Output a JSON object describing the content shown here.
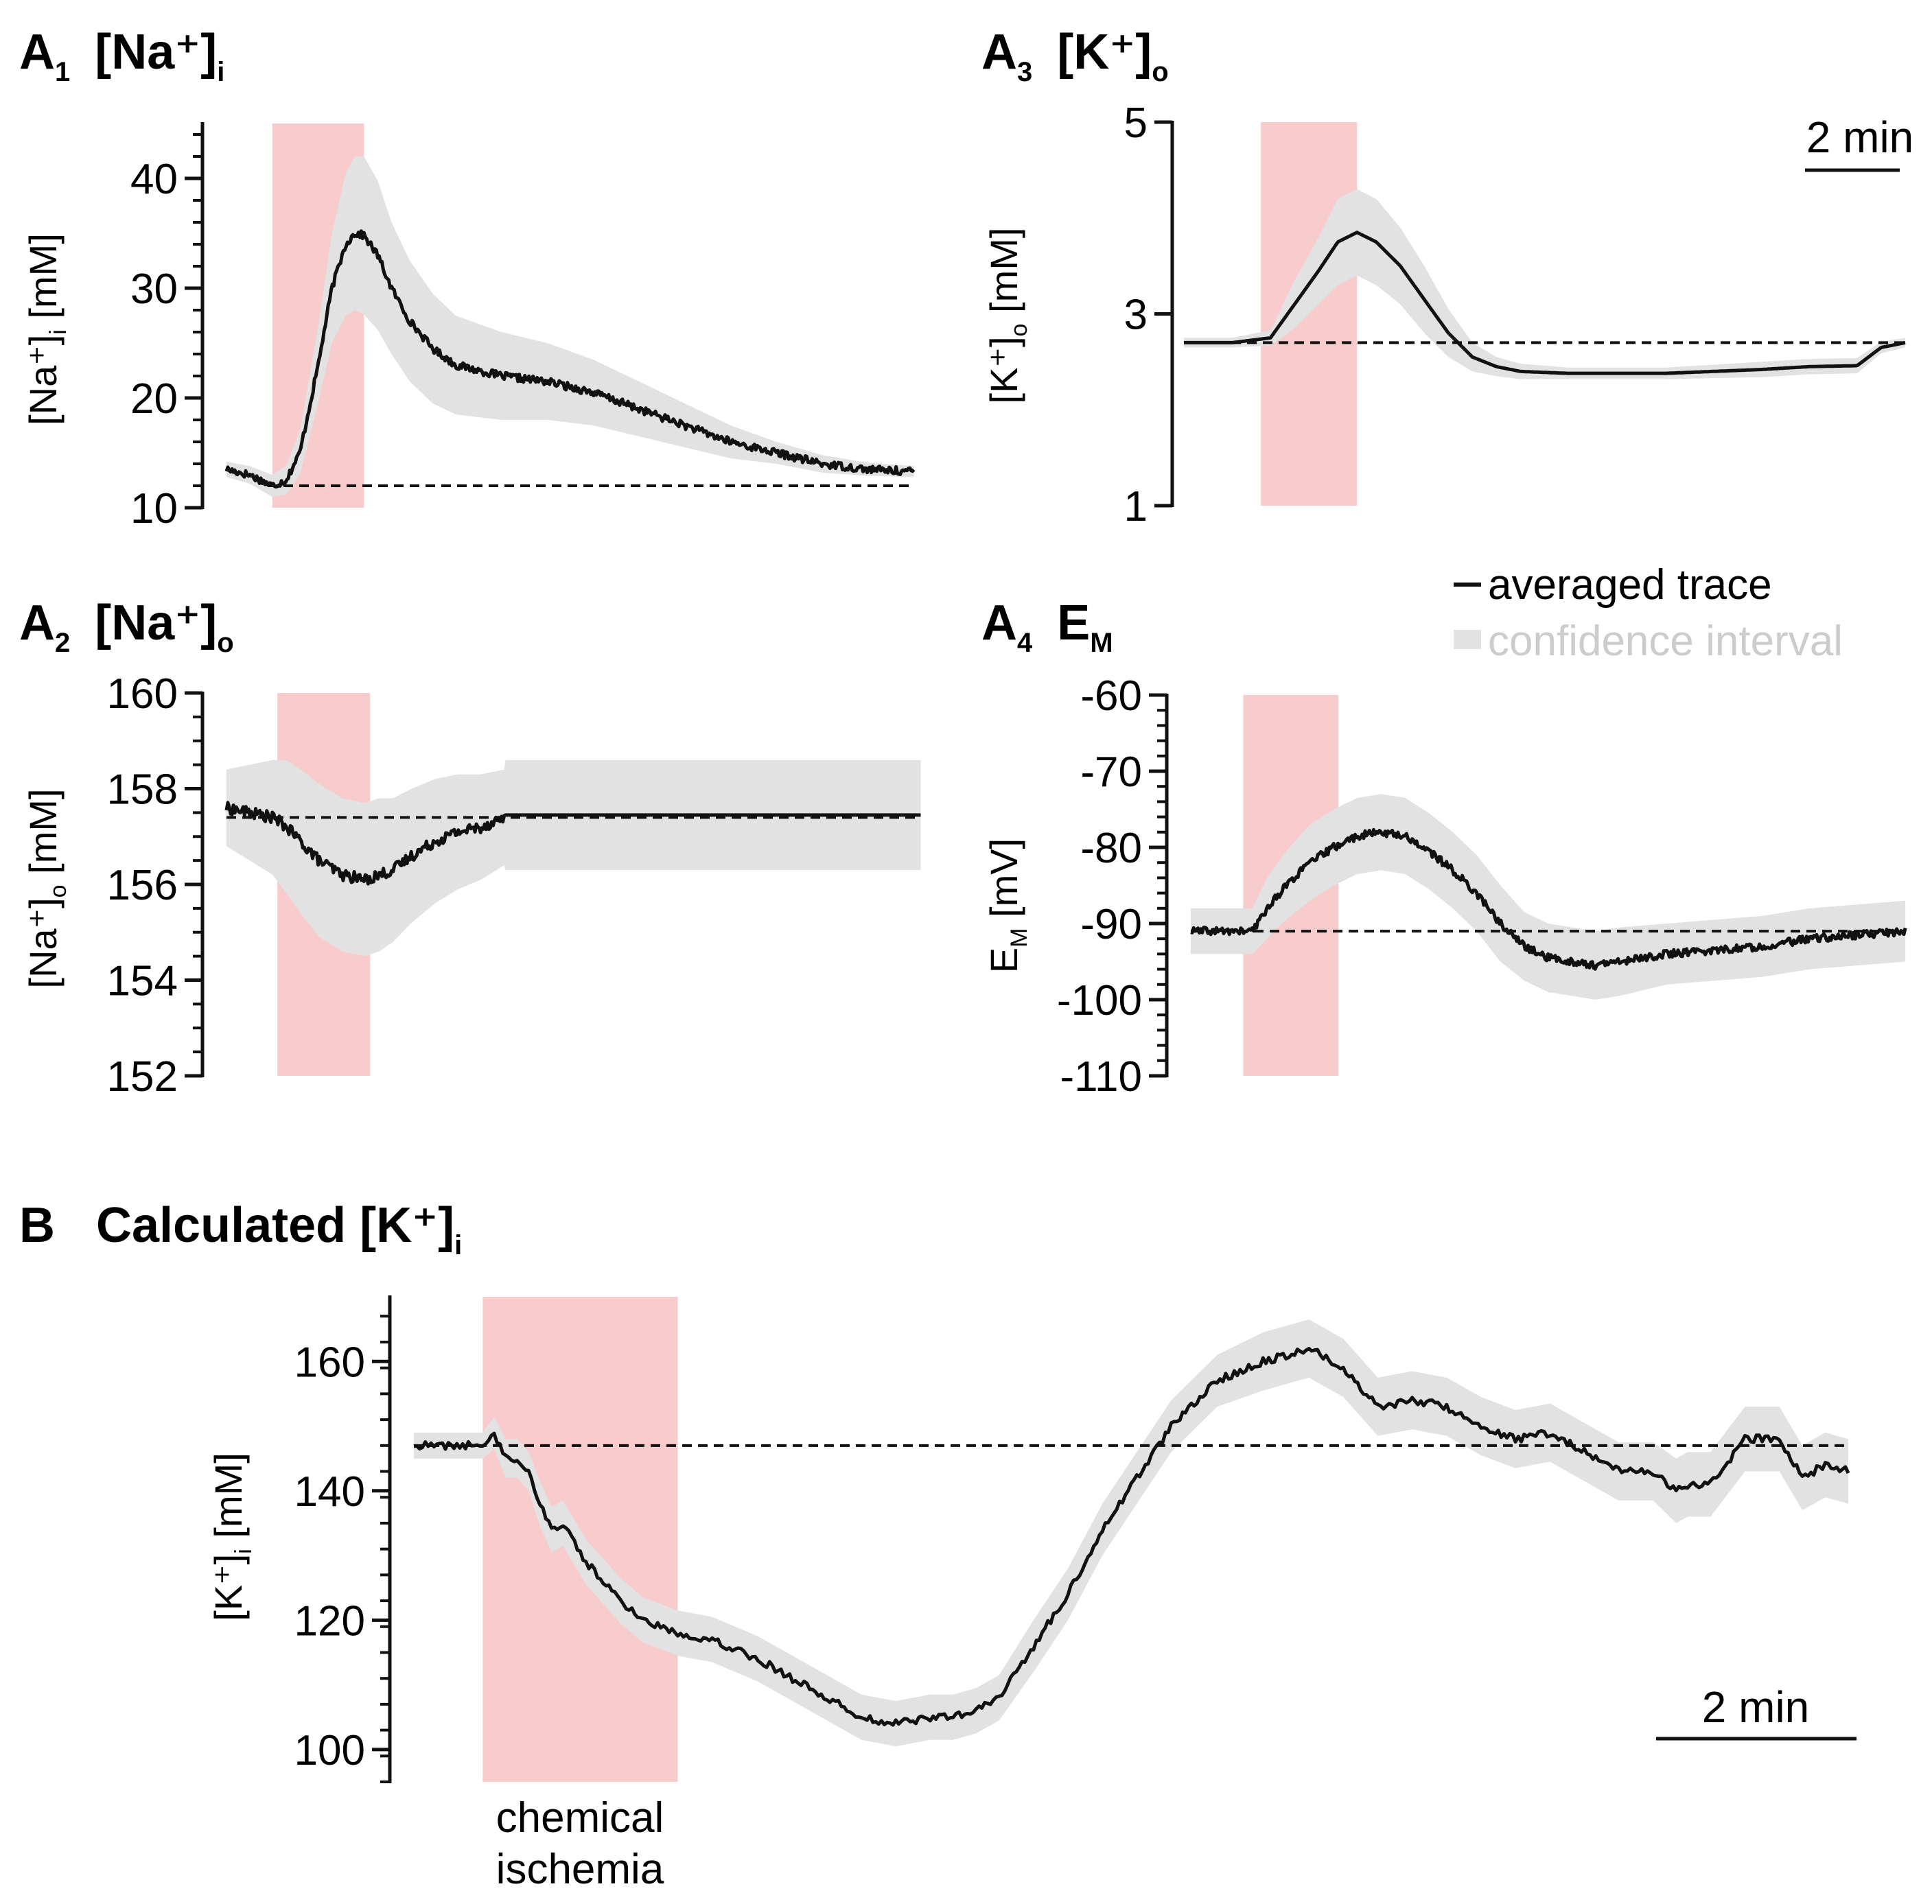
{
  "colors": {
    "trace": "#111111",
    "ci": "#e2e2e2",
    "ischemia": "#f8cbcc",
    "legend_ci_text": "#cccccc"
  },
  "legend": {
    "trace_label": "averaged trace",
    "ci_label": "confidence interval"
  },
  "scalebars": {
    "top": "2 min",
    "bottom": "2 min"
  },
  "annotation": {
    "line1": "chemical",
    "line2": "ischemia"
  },
  "chart_data": [
    {
      "id": "A1",
      "type": "line",
      "panel": "A",
      "panel_index": "1",
      "title": "[Na⁺]",
      "title_sub": "i",
      "ylabel": "[Na⁺]",
      "ylabel_sub": "i",
      "ylabel_unit": " [mM]",
      "xlim": [
        0,
        15.2
      ],
      "ylim": [
        10,
        45
      ],
      "ticks": [
        10,
        20,
        30,
        40
      ],
      "minor_step": 2,
      "ischemia": [
        1.0,
        3.0
      ],
      "baseline": 12,
      "x": [
        0,
        0.5,
        1.0,
        1.3,
        1.6,
        2.0,
        2.3,
        2.6,
        2.8,
        3.0,
        3.3,
        3.6,
        4.0,
        4.5,
        5.0,
        6.0,
        7.0,
        8.0,
        9.0,
        10.0,
        11.0,
        12.0,
        13.0,
        14.0,
        15.0
      ],
      "values": [
        13.5,
        13,
        12,
        12.5,
        15,
        23,
        30,
        34,
        35,
        34.8,
        33,
        30,
        27,
        24.5,
        23,
        22,
        21.5,
        20.5,
        19,
        17.5,
        16,
        15,
        14,
        13.5,
        13.3
      ],
      "ci": [
        0.7,
        0.8,
        1.0,
        1.3,
        2.0,
        3.5,
        5.0,
        6.5,
        7.0,
        7.2,
        6.8,
        6.0,
        5.5,
        5.0,
        4.5,
        4.0,
        3.5,
        3.0,
        2.5,
        2.0,
        1.5,
        1.0,
        0.8,
        0.6,
        0.5
      ],
      "noise": 0.35
    },
    {
      "id": "A2",
      "type": "line",
      "panel": "A",
      "panel_index": "2",
      "title": "[Na⁺]",
      "title_sub": "o",
      "ylabel": "[Na⁺]",
      "ylabel_sub": "o",
      "ylabel_unit": " [mM]",
      "xlim": [
        0,
        15.2
      ],
      "ylim": [
        152,
        160
      ],
      "ticks": [
        152,
        154,
        156,
        158,
        160
      ],
      "minor_step": 0.5,
      "ischemia": [
        1.1,
        3.1
      ],
      "baseline": 157.4,
      "x": [
        0,
        0.5,
        1.0,
        1.3,
        1.6,
        2.0,
        2.5,
        3.0,
        3.3,
        3.6,
        4.0,
        4.5,
        5.0,
        5.5,
        6.0,
        6.01,
        10.0,
        15.0
      ],
      "values": [
        157.6,
        157.5,
        157.4,
        157.2,
        156.9,
        156.5,
        156.2,
        156.1,
        156.2,
        156.3,
        156.6,
        156.9,
        157.1,
        157.2,
        157.4,
        157.45,
        157.45,
        157.45
      ],
      "ci": [
        0.8,
        1.0,
        1.2,
        1.4,
        1.5,
        1.6,
        1.6,
        1.6,
        1.6,
        1.5,
        1.4,
        1.3,
        1.2,
        1.1,
        1.0,
        1.15,
        1.15,
        1.15
      ],
      "noise": 0.12,
      "noise_until": 6.0
    },
    {
      "id": "A3",
      "type": "line",
      "panel": "A",
      "panel_index": "3",
      "title": "[K⁺]",
      "title_sub": "o",
      "ylabel": "[K⁺]",
      "ylabel_sub": "o",
      "ylabel_unit": " [mM]",
      "xlim": [
        0,
        15.2
      ],
      "ylim": [
        1,
        5
      ],
      "ticks": [
        1,
        3,
        5
      ],
      "minor_step": null,
      "ischemia": [
        1.6,
        3.6
      ],
      "baseline": 2.7,
      "x": [
        0,
        1.0,
        1.8,
        2.3,
        2.8,
        3.2,
        3.6,
        4.0,
        4.5,
        5.0,
        5.5,
        6.0,
        6.5,
        7.0,
        8.0,
        9.0,
        10.0,
        11.0,
        12.0,
        13.0,
        14.0,
        14.5,
        15.0
      ],
      "values": [
        2.7,
        2.7,
        2.75,
        3.1,
        3.45,
        3.75,
        3.85,
        3.75,
        3.5,
        3.15,
        2.8,
        2.55,
        2.45,
        2.4,
        2.38,
        2.38,
        2.38,
        2.4,
        2.42,
        2.45,
        2.46,
        2.65,
        2.7
      ],
      "ci": [
        0.05,
        0.05,
        0.08,
        0.25,
        0.35,
        0.45,
        0.45,
        0.45,
        0.4,
        0.35,
        0.25,
        0.15,
        0.1,
        0.08,
        0.06,
        0.06,
        0.06,
        0.07,
        0.08,
        0.08,
        0.08,
        0.06,
        0.05
      ],
      "noise": 0
    },
    {
      "id": "A4",
      "type": "line",
      "panel": "A",
      "panel_index": "4",
      "title": "E",
      "title_sub": "M",
      "ylabel": "E",
      "ylabel_sub": "M",
      "ylabel_unit": " [mV]",
      "xlim": [
        0,
        15.2
      ],
      "ylim": [
        -110,
        -60
      ],
      "ticks": [
        -110,
        -100,
        -90,
        -80,
        -70,
        -60
      ],
      "minor_step": 2,
      "ischemia": [
        1.1,
        3.1
      ],
      "baseline": -91,
      "x": [
        0,
        0.8,
        1.3,
        1.6,
        2.0,
        2.5,
        3.0,
        3.5,
        4.0,
        4.5,
        5.0,
        5.5,
        6.0,
        6.5,
        7.0,
        7.5,
        8.0,
        8.5,
        9.0,
        10.0,
        11.0,
        12.0,
        13.0,
        14.0,
        15.0
      ],
      "values": [
        -91,
        -91,
        -91,
        -88,
        -85,
        -82,
        -80,
        -78.5,
        -78,
        -78.5,
        -80.5,
        -83,
        -86,
        -90,
        -93,
        -94.5,
        -95,
        -95.5,
        -95,
        -94,
        -93.5,
        -93,
        -92,
        -91.5,
        -91
      ],
      "ci": [
        3,
        3,
        3,
        4,
        4.5,
        5,
        5,
        5,
        5,
        5,
        5,
        5,
        5,
        5,
        4.5,
        4.5,
        4.5,
        4.5,
        4.5,
        4,
        4,
        4,
        4,
        4,
        4
      ],
      "noise": 0.5
    },
    {
      "id": "B",
      "type": "line",
      "panel": "B",
      "panel_index": "",
      "title": "Calculated [K⁺]",
      "title_sub": "i",
      "ylabel": "[K⁺]",
      "ylabel_sub": "i",
      "ylabel_unit": " [mM]",
      "xlim": [
        0,
        12.5
      ],
      "ylim": [
        95,
        170
      ],
      "ticks": [
        100,
        120,
        140,
        160
      ],
      "minor_step": 4,
      "ischemia": [
        0.6,
        2.3
      ],
      "baseline": 147,
      "x": [
        0,
        0.4,
        0.6,
        0.7,
        0.8,
        0.9,
        1.0,
        1.1,
        1.2,
        1.3,
        1.5,
        1.8,
        2.0,
        2.3,
        2.6,
        3.0,
        3.3,
        3.6,
        3.9,
        4.2,
        4.5,
        4.7,
        4.9,
        5.1,
        5.4,
        5.7,
        6.0,
        6.3,
        6.6,
        7.0,
        7.4,
        7.8,
        8.1,
        8.4,
        8.7,
        9.0,
        9.3,
        9.6,
        9.9,
        10.2,
        10.5,
        10.8,
        11.0,
        11.1,
        11.3,
        11.6,
        11.9,
        12.1,
        12.3,
        12.5
      ],
      "values": [
        147,
        147,
        147,
        149,
        145,
        145,
        143,
        138,
        134,
        135,
        129,
        123,
        120,
        118,
        117,
        114,
        111,
        108,
        105,
        104,
        105,
        105,
        106,
        108,
        116,
        124,
        134,
        142,
        150,
        157,
        160,
        162,
        159,
        153,
        154,
        153,
        150,
        148,
        149,
        146,
        143,
        143,
        140,
        141,
        141,
        148,
        148,
        142,
        144,
        143
      ],
      "ci": [
        2,
        2,
        2,
        2.5,
        3,
        3,
        3,
        3.5,
        3.5,
        3.5,
        3.5,
        3.5,
        3.5,
        3.5,
        3.5,
        3.5,
        3.5,
        3.5,
        3.5,
        3.5,
        3.5,
        3.5,
        3.5,
        3.5,
        4,
        4,
        4,
        4,
        4,
        4,
        4.5,
        4.5,
        4.5,
        4.5,
        4.5,
        4.5,
        4.5,
        4.5,
        4.5,
        4.5,
        4.5,
        4.5,
        5,
        5,
        5,
        5,
        5,
        5,
        5,
        5
      ],
      "noise": 0.6
    }
  ]
}
